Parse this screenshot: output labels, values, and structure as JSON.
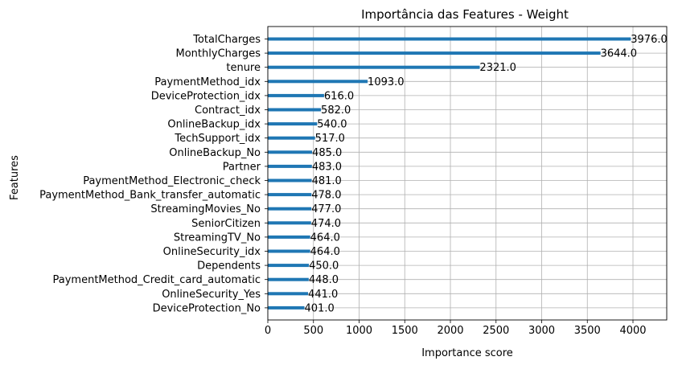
{
  "chart_data": {
    "type": "bar",
    "orientation": "horizontal",
    "title": "Importância das Features - Weight",
    "xlabel": "Importance score",
    "ylabel": "Features",
    "xlim": [
      0,
      4370
    ],
    "xticks": [
      0,
      500,
      1000,
      1500,
      2000,
      2500,
      3000,
      3500,
      4000
    ],
    "grid": true,
    "legend": "none",
    "bar_color": "#1f77b4",
    "categories": [
      "TotalCharges",
      "MonthlyCharges",
      "tenure",
      "PaymentMethod_idx",
      "DeviceProtection_idx",
      "Contract_idx",
      "OnlineBackup_idx",
      "TechSupport_idx",
      "OnlineBackup_No",
      "Partner",
      "PaymentMethod_Electronic_check",
      "PaymentMethod_Bank_transfer_automatic",
      "StreamingMovies_No",
      "SeniorCitizen",
      "StreamingTV_No",
      "OnlineSecurity_idx",
      "Dependents",
      "PaymentMethod_Credit_card_automatic",
      "OnlineSecurity_Yes",
      "DeviceProtection_No"
    ],
    "values": [
      3976,
      3644,
      2321,
      1093,
      616,
      582,
      540,
      517,
      485,
      483,
      481,
      478,
      477,
      474,
      464,
      464,
      450,
      448,
      441,
      401
    ],
    "value_labels": [
      "3976.0",
      "3644.0",
      "2321.0",
      "1093.0",
      "616.0",
      "582.0",
      "540.0",
      "517.0",
      "485.0",
      "483.0",
      "481.0",
      "478.0",
      "477.0",
      "474.0",
      "464.0",
      "464.0",
      "450.0",
      "448.0",
      "441.0",
      "401.0"
    ]
  }
}
